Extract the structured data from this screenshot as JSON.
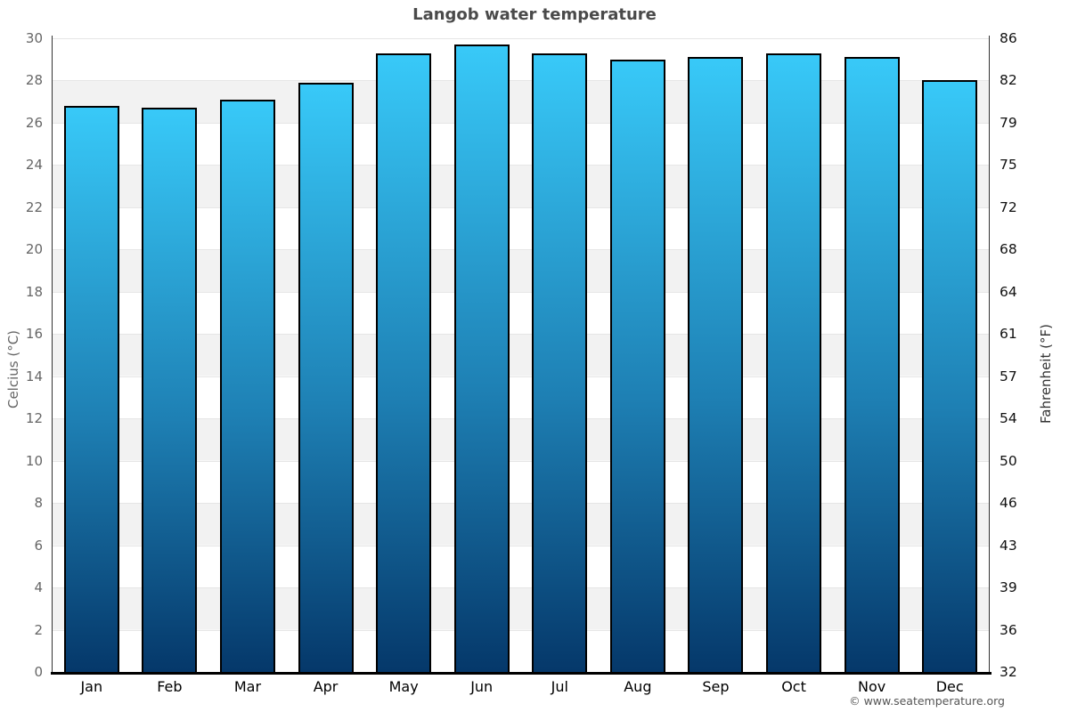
{
  "chart_data": {
    "type": "bar",
    "title": "Langob water temperature",
    "categories": [
      "Jan",
      "Feb",
      "Mar",
      "Apr",
      "May",
      "Jun",
      "Jul",
      "Aug",
      "Sep",
      "Oct",
      "Nov",
      "Dec"
    ],
    "values": [
      26.8,
      26.7,
      27.1,
      27.9,
      29.3,
      29.7,
      29.3,
      29.0,
      29.1,
      29.3,
      29.1,
      28.0
    ],
    "series_unit": "°C",
    "ylabel_left": "Celcius (°C)",
    "ylabel_right": "Fahrenheit (°F)",
    "ylim": [
      0,
      30
    ],
    "ytick_step": 2,
    "celsius_ticks": [
      0,
      2,
      4,
      6,
      8,
      10,
      12,
      14,
      16,
      18,
      20,
      22,
      24,
      26,
      28,
      30
    ],
    "fahrenheit_tick_labels": [
      "32",
      "36",
      "39",
      "43",
      "46",
      "50",
      "54",
      "57",
      "61",
      "64",
      "68",
      "72",
      "75",
      "79",
      "82",
      "86"
    ],
    "grid": "horizontal",
    "legend": "none",
    "colors": {
      "bar_gradient_top": "#38c9f8",
      "bar_gradient_mid": "#1e80b4",
      "bar_gradient_bottom": "#05386a",
      "bar_border": "#000000",
      "stripe_band": "#f2f2f2",
      "gridline": "#e6e6e6",
      "title_text": "#4a4a4a",
      "celsius_tick_text": "#666666",
      "fahrenheit_tick_text": "#111111",
      "month_text": "#000000"
    }
  },
  "footer": {
    "credit": "© www.seatemperature.org"
  }
}
